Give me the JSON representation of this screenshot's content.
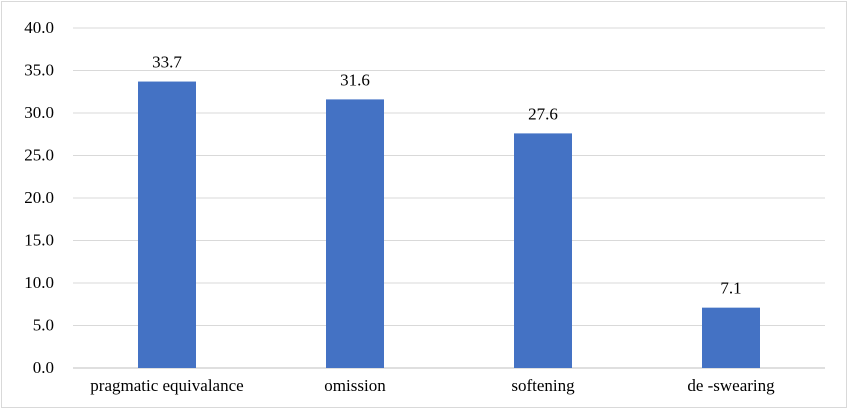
{
  "chart_data": {
    "type": "bar",
    "title": "",
    "xlabel": "",
    "ylabel": "",
    "categories": [
      "pragmatic equivalance",
      "omission",
      "softening",
      "de -swearing"
    ],
    "values": [
      33.7,
      31.6,
      27.6,
      7.1
    ],
    "value_labels": [
      "33.7",
      "31.6",
      "27.6",
      "7.1"
    ],
    "ylim": [
      0,
      40
    ],
    "yticks": [
      "0.0",
      "5.0",
      "10.0",
      "15.0",
      "20.0",
      "25.0",
      "30.0",
      "35.0",
      "40.0"
    ],
    "grid": true,
    "legend": "none",
    "colors": {
      "bar": "#4472c4",
      "grid": "#d9d9d9",
      "text": "#000000"
    }
  }
}
